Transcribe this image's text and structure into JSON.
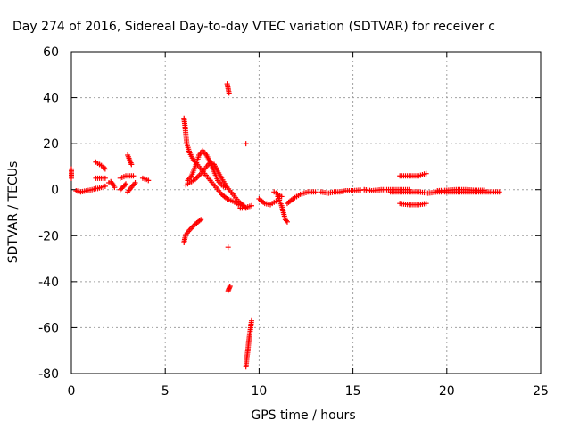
{
  "chart_data": {
    "type": "scatter",
    "title": "Day 274 of 2016, Sidereal Day-to-day VTEC variation (SDTVAR) for receiver c",
    "xlabel": "GPS time / hours",
    "ylabel": "SDTVAR / TECUs",
    "xlim": [
      0,
      25
    ],
    "ylim": [
      -80,
      60
    ],
    "xticks": [
      0,
      5,
      10,
      15,
      20,
      25
    ],
    "yticks": [
      -80,
      -60,
      -40,
      -20,
      0,
      20,
      40,
      60
    ],
    "grid": true,
    "marker": "plus",
    "color": "#ff0000",
    "segments": [
      [
        [
          0.0,
          9
        ],
        [
          0.0,
          7
        ],
        [
          0.0,
          5
        ]
      ],
      [
        [
          0.25,
          -0.5
        ],
        [
          0.5,
          -1
        ],
        [
          0.8,
          -0.5
        ],
        [
          1.1,
          0
        ],
        [
          1.3,
          0.5
        ]
      ],
      [
        [
          1.3,
          12
        ],
        [
          1.5,
          11
        ],
        [
          1.7,
          10
        ],
        [
          1.8,
          9
        ]
      ],
      [
        [
          1.3,
          5
        ],
        [
          1.6,
          5
        ],
        [
          1.8,
          5
        ]
      ],
      [
        [
          1.4,
          0.5
        ],
        [
          1.6,
          1
        ],
        [
          1.8,
          1.5
        ]
      ],
      [
        [
          2.0,
          3
        ],
        [
          2.1,
          3.5
        ],
        [
          2.2,
          2.5
        ],
        [
          2.3,
          1
        ]
      ],
      [
        [
          2.6,
          5
        ],
        [
          2.9,
          6
        ],
        [
          3.1,
          6
        ],
        [
          3.3,
          6
        ]
      ],
      [
        [
          2.6,
          0
        ],
        [
          2.8,
          1.5
        ],
        [
          2.9,
          2.5
        ]
      ],
      [
        [
          3.0,
          15
        ],
        [
          3.1,
          13
        ],
        [
          3.2,
          11
        ]
      ],
      [
        [
          3.0,
          -1
        ],
        [
          3.2,
          1
        ],
        [
          3.4,
          3
        ]
      ],
      [
        [
          3.8,
          5
        ],
        [
          4.0,
          4.5
        ],
        [
          4.1,
          4
        ]
      ],
      [
        [
          6.0,
          31
        ],
        [
          6.05,
          28
        ],
        [
          6.1,
          24
        ],
        [
          6.15,
          20
        ],
        [
          6.3,
          16
        ],
        [
          6.5,
          13
        ],
        [
          6.8,
          10
        ],
        [
          7.1,
          7
        ],
        [
          7.4,
          4
        ],
        [
          7.7,
          1
        ],
        [
          8.0,
          -2
        ],
        [
          8.3,
          -4
        ],
        [
          8.6,
          -5
        ],
        [
          8.9,
          -6.5
        ],
        [
          9.2,
          -7
        ]
      ],
      [
        [
          6.2,
          4
        ],
        [
          6.4,
          6
        ],
        [
          6.6,
          10
        ],
        [
          6.8,
          15
        ],
        [
          7.0,
          17
        ],
        [
          7.2,
          15
        ],
        [
          7.4,
          12
        ],
        [
          7.6,
          8
        ],
        [
          7.8,
          4
        ],
        [
          8.0,
          2
        ],
        [
          8.2,
          1
        ]
      ],
      [
        [
          6.1,
          2
        ],
        [
          6.3,
          3
        ],
        [
          6.6,
          4.5
        ],
        [
          6.9,
          7
        ],
        [
          7.2,
          10
        ],
        [
          7.4,
          12
        ],
        [
          7.6,
          11
        ],
        [
          7.8,
          8
        ],
        [
          8.0,
          5
        ],
        [
          8.3,
          1
        ],
        [
          8.6,
          -2
        ],
        [
          8.9,
          -5
        ],
        [
          9.3,
          -8
        ]
      ],
      [
        [
          6.0,
          -23
        ],
        [
          6.05,
          -21
        ],
        [
          6.1,
          -19.5
        ],
        [
          6.3,
          -17.5
        ],
        [
          6.6,
          -15
        ],
        [
          6.9,
          -13
        ]
      ],
      [
        [
          8.3,
          46
        ],
        [
          8.35,
          44
        ],
        [
          8.4,
          42
        ]
      ],
      [
        [
          8.35,
          -25
        ]
      ],
      [
        [
          8.35,
          -44
        ],
        [
          8.4,
          -43
        ],
        [
          8.45,
          -42
        ]
      ],
      [
        [
          9.3,
          20
        ]
      ],
      [
        [
          9.3,
          -77
        ],
        [
          9.35,
          -73
        ],
        [
          9.4,
          -70
        ],
        [
          9.45,
          -66
        ],
        [
          9.5,
          -63
        ],
        [
          9.55,
          -60
        ],
        [
          9.6,
          -57
        ]
      ],
      [
        [
          9.0,
          -8
        ],
        [
          9.2,
          -8
        ],
        [
          9.4,
          -7.5
        ],
        [
          9.6,
          -7
        ]
      ],
      [
        [
          10.0,
          -4
        ],
        [
          10.3,
          -6
        ],
        [
          10.6,
          -6.5
        ],
        [
          10.9,
          -5
        ]
      ],
      [
        [
          10.8,
          -1
        ],
        [
          11.0,
          -2
        ],
        [
          11.2,
          -3
        ]
      ],
      [
        [
          11.0,
          -3
        ],
        [
          11.2,
          -7
        ],
        [
          11.3,
          -10
        ],
        [
          11.4,
          -13
        ],
        [
          11.5,
          -14
        ]
      ],
      [
        [
          11.5,
          -6
        ],
        [
          11.8,
          -4
        ],
        [
          12.2,
          -2
        ],
        [
          12.6,
          -1
        ],
        [
          13.0,
          -1
        ]
      ],
      [
        [
          13.3,
          -1
        ],
        [
          13.7,
          -1.5
        ],
        [
          14.0,
          -1
        ],
        [
          14.3,
          -1
        ],
        [
          14.6,
          -0.5
        ],
        [
          15.0,
          -0.5
        ],
        [
          15.4,
          -0.2
        ]
      ],
      [
        [
          15.6,
          0
        ],
        [
          16.0,
          -0.5
        ],
        [
          16.5,
          0
        ],
        [
          17.0,
          0
        ],
        [
          17.5,
          0
        ],
        [
          18.0,
          0
        ]
      ],
      [
        [
          17.0,
          -1
        ],
        [
          17.5,
          -1
        ],
        [
          18.0,
          -1
        ],
        [
          18.5,
          -1
        ],
        [
          19.0,
          -1.5
        ],
        [
          19.5,
          -1
        ],
        [
          20.0,
          -1
        ],
        [
          20.5,
          -1
        ],
        [
          21.0,
          -1
        ],
        [
          21.5,
          -1
        ],
        [
          22.0,
          -1
        ],
        [
          22.5,
          -1
        ],
        [
          22.8,
          -1
        ]
      ],
      [
        [
          17.5,
          6
        ],
        [
          18.0,
          6
        ],
        [
          18.5,
          6
        ],
        [
          18.9,
          7
        ]
      ],
      [
        [
          17.5,
          -6
        ],
        [
          18.0,
          -6.5
        ],
        [
          18.5,
          -6.5
        ],
        [
          18.9,
          -6
        ]
      ],
      [
        [
          19.5,
          -0.5
        ],
        [
          20.0,
          -0.3
        ],
        [
          20.5,
          0
        ],
        [
          21.0,
          0
        ],
        [
          21.5,
          -0.3
        ],
        [
          22.0,
          -0.3
        ]
      ]
    ]
  }
}
